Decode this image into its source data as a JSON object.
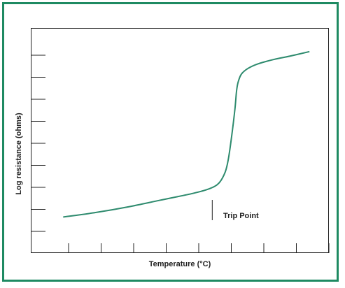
{
  "chart_data": {
    "type": "line",
    "title": "",
    "xlabel": "Temperature (°C)",
    "ylabel": "Log resistance (ohms)",
    "x_ticks": 9,
    "y_ticks": 9,
    "grid": false,
    "annotations": [
      {
        "text": "Trip Point",
        "x": 5.6
      }
    ],
    "series": [
      {
        "color": "#2e8b6e",
        "x": [
          1.0,
          2.0,
          3.0,
          4.0,
          5.0,
          5.5,
          5.8,
          6.0,
          6.1,
          6.2,
          6.3,
          6.35,
          6.4,
          6.5,
          6.7,
          7.0,
          7.5,
          8.0,
          8.6
        ],
        "y": [
          1.6,
          1.8,
          2.05,
          2.35,
          2.65,
          2.85,
          3.1,
          3.6,
          4.2,
          5.2,
          6.4,
          7.2,
          7.6,
          7.95,
          8.2,
          8.4,
          8.6,
          8.75,
          8.95
        ]
      }
    ],
    "xlim": [
      0,
      9.2
    ],
    "ylim": [
      0,
      10
    ]
  }
}
